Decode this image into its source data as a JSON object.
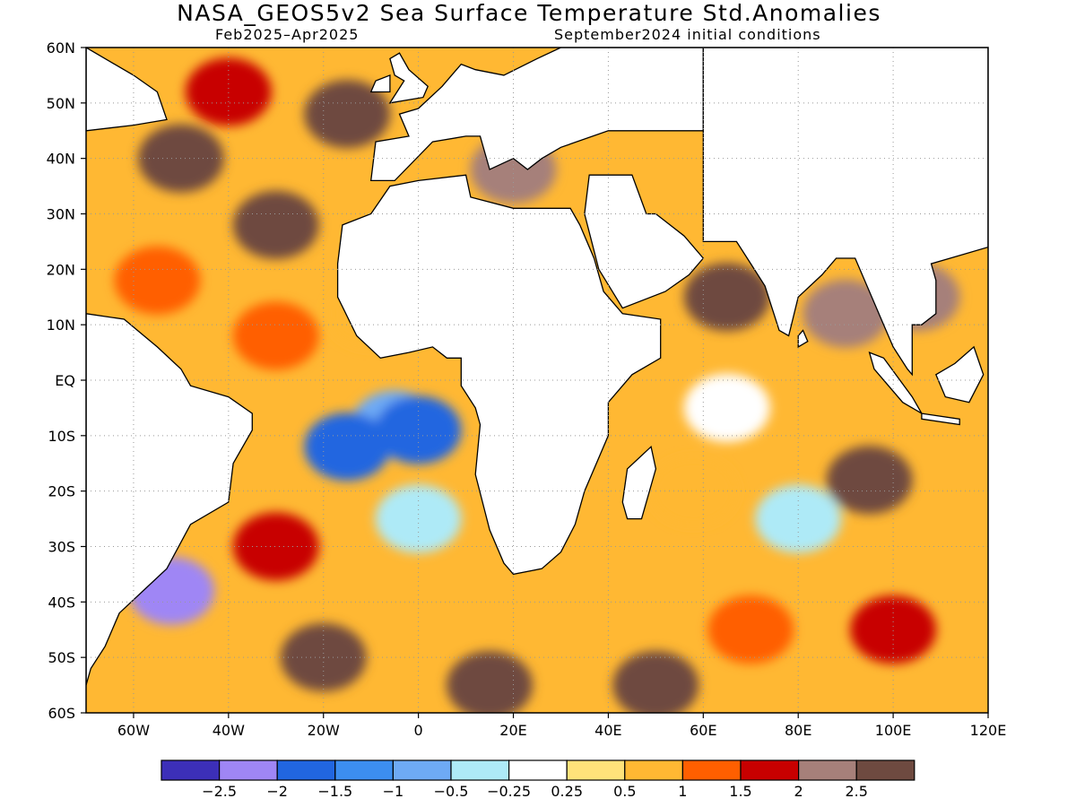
{
  "title": "NASA_GEOS5v2 Sea Surface Temperature Std.Anomalies",
  "subtitle_left": "Feb2025–Apr2025",
  "subtitle_right": "September2024 initial conditions",
  "map": {
    "lon_range": [
      -70,
      120
    ],
    "lat_range": [
      -60,
      60
    ],
    "lat_ticks": [
      {
        "lat": 60,
        "label": "60N"
      },
      {
        "lat": 50,
        "label": "50N"
      },
      {
        "lat": 40,
        "label": "40N"
      },
      {
        "lat": 30,
        "label": "30N"
      },
      {
        "lat": 20,
        "label": "20N"
      },
      {
        "lat": 10,
        "label": "10N"
      },
      {
        "lat": 0,
        "label": "EQ"
      },
      {
        "lat": -10,
        "label": "10S"
      },
      {
        "lat": -20,
        "label": "20S"
      },
      {
        "lat": -30,
        "label": "30S"
      },
      {
        "lat": -40,
        "label": "40S"
      },
      {
        "lat": -50,
        "label": "50S"
      },
      {
        "lat": -60,
        "label": "60S"
      }
    ],
    "lon_ticks": [
      {
        "lon": -60,
        "label": "60W"
      },
      {
        "lon": -40,
        "label": "40W"
      },
      {
        "lon": -20,
        "label": "20W"
      },
      {
        "lon": 0,
        "label": "0"
      },
      {
        "lon": 20,
        "label": "20E"
      },
      {
        "lon": 40,
        "label": "40E"
      },
      {
        "lon": 60,
        "label": "60E"
      },
      {
        "lon": 80,
        "label": "80E"
      },
      {
        "lon": 100,
        "label": "100E"
      },
      {
        "lon": 120,
        "label": "120E"
      }
    ],
    "grid": "dotted"
  },
  "colorbar": {
    "colors": [
      "#3c2fb8",
      "#9f86f5",
      "#2166e0",
      "#3c8ef0",
      "#6eaaf5",
      "#aeeaf7",
      "#ffffff",
      "#ffe27a",
      "#ffb833",
      "#ff5f00",
      "#c80000",
      "#a6807a",
      "#6e4a40"
    ],
    "labels": [
      "−2.5",
      "−2",
      "−1.5",
      "−1",
      "−0.5",
      "−0.25",
      "0.25",
      "0.5",
      "1",
      "1.5",
      "2",
      "2.5"
    ]
  },
  "anomaly_fields": [
    {
      "lon": -50,
      "lat": 40,
      "value": 2.5
    },
    {
      "lon": -30,
      "lat": 28,
      "value": 2.5
    },
    {
      "lon": -15,
      "lat": 48,
      "value": 2.5
    },
    {
      "lon": -40,
      "lat": 52,
      "value": 1.5
    },
    {
      "lon": -55,
      "lat": 18,
      "value": 1
    },
    {
      "lon": -30,
      "lat": 8,
      "value": 1
    },
    {
      "lon": -10,
      "lat": 12,
      "value": 0.5
    },
    {
      "lon": -5,
      "lat": -8,
      "value": -1
    },
    {
      "lon": -15,
      "lat": -12,
      "value": -2
    },
    {
      "lon": 0,
      "lat": -9,
      "value": -2
    },
    {
      "lon": 0,
      "lat": -25,
      "value": -0.5
    },
    {
      "lon": -52,
      "lat": -38,
      "value": -2.5
    },
    {
      "lon": -30,
      "lat": -30,
      "value": 1.5
    },
    {
      "lon": -20,
      "lat": -50,
      "value": 2.5
    },
    {
      "lon": 15,
      "lat": -55,
      "value": 2.5
    },
    {
      "lon": 50,
      "lat": -55,
      "value": 2.5
    },
    {
      "lon": 70,
      "lat": -45,
      "value": 1
    },
    {
      "lon": 58,
      "lat": -20,
      "value": 0.5
    },
    {
      "lon": 65,
      "lat": -5,
      "value": -0.25
    },
    {
      "lon": 65,
      "lat": 15,
      "value": 2.5
    },
    {
      "lon": 90,
      "lat": 12,
      "value": 2
    },
    {
      "lon": 95,
      "lat": -18,
      "value": 2.5
    },
    {
      "lon": 80,
      "lat": -25,
      "value": -0.5
    },
    {
      "lon": 105,
      "lat": 15,
      "value": 2
    },
    {
      "lon": 100,
      "lat": -45,
      "value": 1.5
    },
    {
      "lon": 20,
      "lat": 38,
      "value": 2
    }
  ]
}
